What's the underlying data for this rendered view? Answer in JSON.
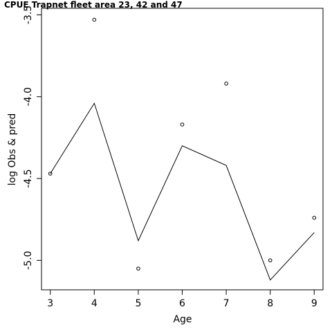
{
  "chart_data": {
    "type": "line",
    "title": "CPUE Trapnet fleet area 23, 42 and 47",
    "xlabel": "Age",
    "ylabel": "log Obs & pred",
    "x": [
      3,
      4,
      5,
      6,
      7,
      8,
      9
    ],
    "xlim": [
      2.8,
      9.2
    ],
    "ylim": [
      -5.18,
      -3.46
    ],
    "xticks": [
      3,
      4,
      5,
      6,
      7,
      8,
      9
    ],
    "yticks": [
      -5.0,
      -4.5,
      -4.0,
      -3.5
    ],
    "ytick_labels": [
      "-5.0",
      "-4.5",
      "-4.0",
      "-3.5"
    ],
    "grid": false,
    "series": [
      {
        "kind": "points",
        "marker": "open-circle",
        "values": [
          -4.47,
          -3.53,
          -5.05,
          -4.17,
          -3.92,
          -5.0,
          -4.74
        ]
      },
      {
        "kind": "line",
        "values": [
          -4.47,
          -4.04,
          -4.88,
          -4.3,
          -4.42,
          -5.12,
          -4.83
        ]
      }
    ]
  }
}
